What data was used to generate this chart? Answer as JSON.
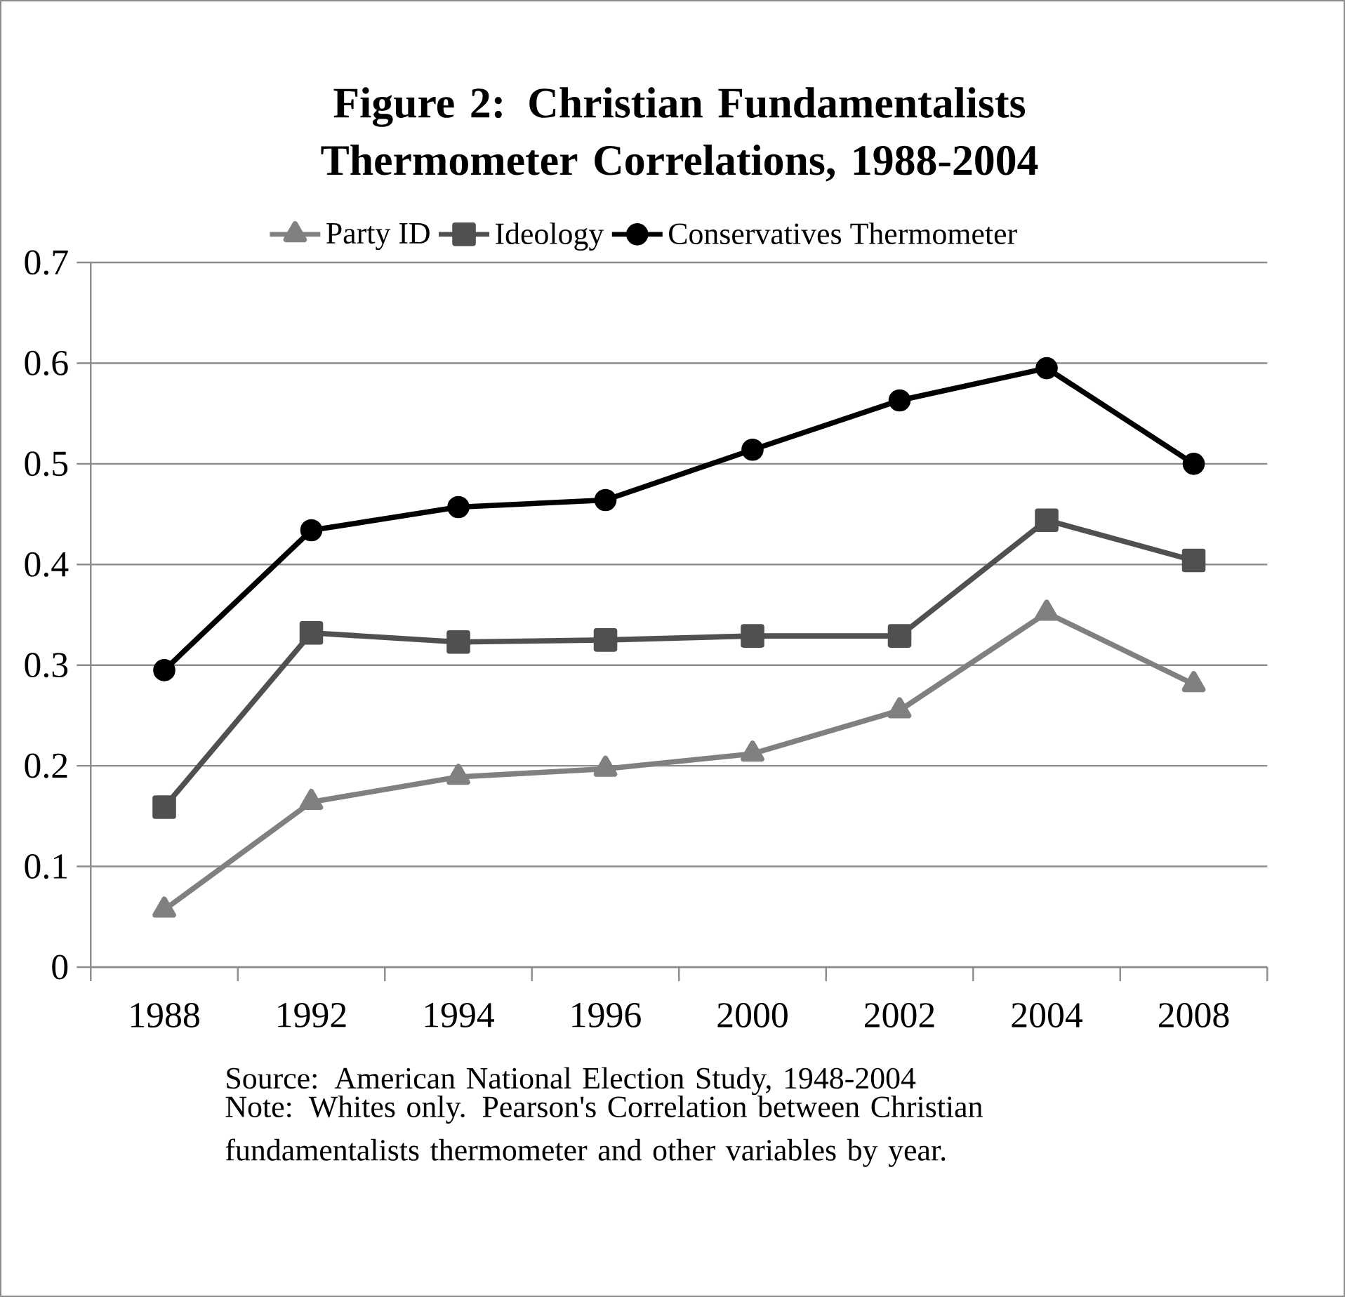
{
  "chart_data": {
    "type": "line",
    "title": "Figure 2: Christian Fundamentalists Thermometer Correlations, 1988-2004",
    "categories": [
      "1988",
      "1992",
      "1994",
      "1996",
      "2000",
      "2002",
      "2004",
      "2008"
    ],
    "series": [
      {
        "name": "Party ID",
        "color": "#808080",
        "marker": "triangle",
        "values": [
          0.057,
          0.164,
          0.189,
          0.197,
          0.212,
          0.255,
          0.352,
          0.281
        ]
      },
      {
        "name": "Ideology",
        "color": "#505050",
        "marker": "square",
        "values": [
          0.159,
          0.332,
          0.323,
          0.325,
          0.329,
          0.329,
          0.444,
          0.404
        ]
      },
      {
        "name": "Conservatives Thermometer",
        "color": "#000000",
        "marker": "circle",
        "values": [
          0.295,
          0.434,
          0.457,
          0.464,
          0.514,
          0.563,
          0.595,
          0.5
        ]
      }
    ],
    "ylim": [
      0,
      0.7
    ],
    "yticks": [
      0,
      0.1,
      0.2,
      0.3,
      0.4,
      0.5,
      0.6,
      0.7
    ],
    "grid": "y",
    "legend": "top",
    "line_style": "solid",
    "annotations": [
      "Source: American National Election Study, 1948-2004",
      "Note: Whites only. Pearson's Correlation between Christian fundamentalists thermometer and other variables by year."
    ]
  }
}
